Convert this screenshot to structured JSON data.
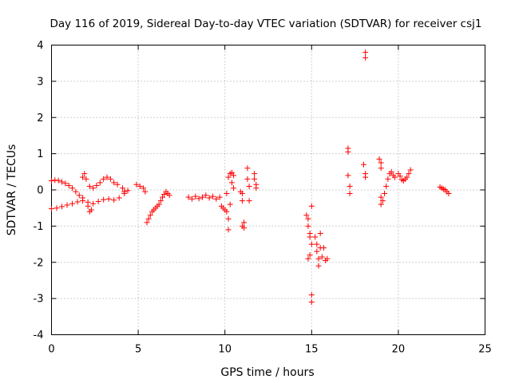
{
  "chart_data": {
    "type": "scatter",
    "title": "Day 116 of 2019, Sidereal Day-to-day VTEC variation (SDTVAR) for receiver csj1",
    "xlabel": "GPS time / hours",
    "ylabel": "SDTVAR / TECUs",
    "xlim": [
      0,
      25
    ],
    "ylim": [
      -4,
      4
    ],
    "xticks": [
      0,
      5,
      10,
      15,
      20,
      25
    ],
    "yticks": [
      -4,
      -3,
      -2,
      -1,
      0,
      1,
      2,
      3,
      4
    ],
    "grid": true,
    "marker": "+",
    "color": "#ff0000",
    "series": [
      {
        "name": "csj1",
        "points": [
          [
            0.0,
            0.25
          ],
          [
            0.2,
            0.27
          ],
          [
            0.4,
            0.26
          ],
          [
            0.6,
            0.22
          ],
          [
            0.8,
            0.18
          ],
          [
            1.0,
            0.12
          ],
          [
            1.2,
            0.05
          ],
          [
            1.4,
            -0.05
          ],
          [
            1.6,
            -0.15
          ],
          [
            1.8,
            -0.22
          ],
          [
            0.0,
            -0.52
          ],
          [
            0.3,
            -0.5
          ],
          [
            0.6,
            -0.46
          ],
          [
            0.9,
            -0.42
          ],
          [
            1.2,
            -0.38
          ],
          [
            1.5,
            -0.33
          ],
          [
            1.8,
            -0.3
          ],
          [
            2.1,
            -0.34
          ],
          [
            2.4,
            -0.38
          ],
          [
            2.7,
            -0.32
          ],
          [
            3.0,
            -0.27
          ],
          [
            3.3,
            -0.25
          ],
          [
            3.6,
            -0.28
          ],
          [
            3.9,
            -0.22
          ],
          [
            4.2,
            -0.1
          ],
          [
            4.4,
            -0.02
          ],
          [
            1.8,
            0.35
          ],
          [
            1.9,
            0.45
          ],
          [
            2.0,
            0.3
          ],
          [
            2.1,
            -0.45
          ],
          [
            2.2,
            -0.6
          ],
          [
            2.3,
            -0.55
          ],
          [
            2.2,
            0.1
          ],
          [
            2.4,
            0.05
          ],
          [
            2.6,
            0.12
          ],
          [
            2.8,
            0.2
          ],
          [
            3.0,
            0.3
          ],
          [
            3.2,
            0.35
          ],
          [
            3.4,
            0.3
          ],
          [
            3.6,
            0.2
          ],
          [
            3.8,
            0.15
          ],
          [
            4.1,
            0.05
          ],
          [
            4.2,
            -0.05
          ],
          [
            4.9,
            0.15
          ],
          [
            5.1,
            0.1
          ],
          [
            5.3,
            0.05
          ],
          [
            5.4,
            -0.05
          ],
          [
            5.5,
            -0.9
          ],
          [
            5.6,
            -0.8
          ],
          [
            5.7,
            -0.7
          ],
          [
            5.8,
            -0.6
          ],
          [
            5.9,
            -0.55
          ],
          [
            6.0,
            -0.5
          ],
          [
            6.1,
            -0.45
          ],
          [
            6.2,
            -0.4
          ],
          [
            6.3,
            -0.3
          ],
          [
            6.4,
            -0.2
          ],
          [
            6.5,
            -0.12
          ],
          [
            6.6,
            -0.05
          ],
          [
            6.7,
            -0.1
          ],
          [
            6.8,
            -0.15
          ],
          [
            7.9,
            -0.2
          ],
          [
            8.1,
            -0.25
          ],
          [
            8.3,
            -0.18
          ],
          [
            8.5,
            -0.24
          ],
          [
            8.7,
            -0.2
          ],
          [
            8.9,
            -0.15
          ],
          [
            9.1,
            -0.22
          ],
          [
            9.3,
            -0.18
          ],
          [
            9.5,
            -0.25
          ],
          [
            9.7,
            -0.2
          ],
          [
            9.8,
            -0.45
          ],
          [
            9.9,
            -0.5
          ],
          [
            10.0,
            -0.55
          ],
          [
            10.1,
            -0.1
          ],
          [
            10.1,
            -0.6
          ],
          [
            10.2,
            -0.8
          ],
          [
            10.2,
            -1.1
          ],
          [
            10.3,
            -0.4
          ],
          [
            10.2,
            0.35
          ],
          [
            10.3,
            0.45
          ],
          [
            10.4,
            0.48
          ],
          [
            10.5,
            0.4
          ],
          [
            10.4,
            0.2
          ],
          [
            10.5,
            0.05
          ],
          [
            10.9,
            -0.05
          ],
          [
            11.0,
            -0.1
          ],
          [
            11.0,
            -0.3
          ],
          [
            11.1,
            -0.9
          ],
          [
            11.0,
            -1.0
          ],
          [
            11.1,
            -1.05
          ],
          [
            11.3,
            0.6
          ],
          [
            11.3,
            0.3
          ],
          [
            11.4,
            0.1
          ],
          [
            11.4,
            -0.3
          ],
          [
            11.7,
            0.45
          ],
          [
            11.7,
            0.3
          ],
          [
            11.8,
            0.15
          ],
          [
            11.8,
            0.05
          ],
          [
            14.7,
            -0.7
          ],
          [
            14.8,
            -0.8
          ],
          [
            14.8,
            -1.0
          ],
          [
            14.9,
            -1.2
          ],
          [
            14.9,
            -1.3
          ],
          [
            14.8,
            -1.9
          ],
          [
            14.9,
            -1.8
          ],
          [
            15.0,
            -1.5
          ],
          [
            15.0,
            -0.45
          ],
          [
            15.0,
            -2.9
          ],
          [
            15.0,
            -3.1
          ],
          [
            15.2,
            -1.3
          ],
          [
            15.3,
            -1.5
          ],
          [
            15.3,
            -1.7
          ],
          [
            15.4,
            -1.9
          ],
          [
            15.4,
            -2.1
          ],
          [
            15.5,
            -1.2
          ],
          [
            15.5,
            -1.6
          ],
          [
            15.6,
            -1.85
          ],
          [
            15.7,
            -1.6
          ],
          [
            15.8,
            -1.95
          ],
          [
            15.9,
            -1.9
          ],
          [
            17.1,
            1.15
          ],
          [
            17.1,
            1.05
          ],
          [
            17.1,
            0.4
          ],
          [
            17.2,
            0.1
          ],
          [
            17.2,
            -0.1
          ],
          [
            18.1,
            3.8
          ],
          [
            18.1,
            3.65
          ],
          [
            18.0,
            0.7
          ],
          [
            18.1,
            0.45
          ],
          [
            18.1,
            0.35
          ],
          [
            18.9,
            0.85
          ],
          [
            19.0,
            0.75
          ],
          [
            19.0,
            0.6
          ],
          [
            19.0,
            -0.2
          ],
          [
            19.0,
            -0.4
          ],
          [
            19.1,
            -0.3
          ],
          [
            19.2,
            -0.1
          ],
          [
            19.3,
            0.1
          ],
          [
            19.4,
            0.3
          ],
          [
            19.5,
            0.45
          ],
          [
            19.6,
            0.5
          ],
          [
            19.7,
            0.4
          ],
          [
            19.8,
            0.35
          ],
          [
            20.0,
            0.45
          ],
          [
            20.1,
            0.38
          ],
          [
            20.2,
            0.28
          ],
          [
            20.3,
            0.25
          ],
          [
            20.4,
            0.3
          ],
          [
            20.5,
            0.35
          ],
          [
            20.6,
            0.45
          ],
          [
            20.7,
            0.55
          ],
          [
            22.4,
            0.08
          ],
          [
            22.5,
            0.05
          ],
          [
            22.6,
            0.02
          ],
          [
            22.7,
            0.0
          ],
          [
            22.8,
            -0.05
          ],
          [
            22.9,
            -0.1
          ]
        ]
      }
    ]
  }
}
